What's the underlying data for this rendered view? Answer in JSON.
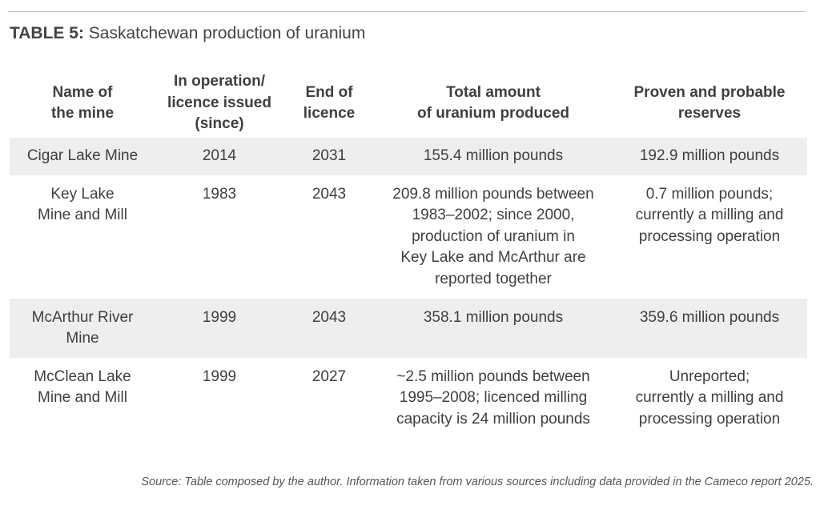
{
  "caption": {
    "label": "TABLE 5:",
    "title": "Saskatchewan production of uranium"
  },
  "table": {
    "headers": [
      [
        "Name of",
        "the mine"
      ],
      [
        "In operation/",
        "licence issued",
        "(since)"
      ],
      [
        "End of",
        "licence"
      ],
      [
        "Total amount",
        "of uranium produced"
      ],
      [
        "Proven and probable",
        "reserves"
      ]
    ],
    "rows": [
      {
        "name": [
          "Cigar Lake Mine"
        ],
        "since": "2014",
        "end": "2031",
        "produced": [
          "155.4 million pounds"
        ],
        "reserves": [
          "192.9 million pounds"
        ]
      },
      {
        "name": [
          "Key Lake",
          "Mine and Mill"
        ],
        "since": "1983",
        "end": "2043",
        "produced": [
          "209.8 million pounds between",
          "1983–2002; since 2000,",
          "production of uranium in",
          "Key Lake and McArthur are",
          "reported together"
        ],
        "reserves": [
          "0.7 million pounds;",
          "currently a milling and",
          "processing operation"
        ]
      },
      {
        "name": [
          "McArthur River",
          "Mine"
        ],
        "since": "1999",
        "end": "2043",
        "produced": [
          "358.1 million pounds"
        ],
        "reserves": [
          "359.6 million pounds"
        ]
      },
      {
        "name": [
          "McClean Lake",
          "Mine and Mill"
        ],
        "since": "1999",
        "end": "2027",
        "produced": [
          "~2.5 million pounds between",
          "1995–2008; licenced milling",
          "capacity is 24 million pounds"
        ],
        "reserves": [
          "Unreported;",
          "currently a milling and",
          "processing operation"
        ]
      }
    ]
  },
  "source": "Source: Table composed by the author. Information taken from various sources including data provided in the Cameco report 2025.",
  "colors": {
    "shaded_row": "#eeeeee",
    "text": "#3f3f3f",
    "rule": "#bdbdbd"
  }
}
